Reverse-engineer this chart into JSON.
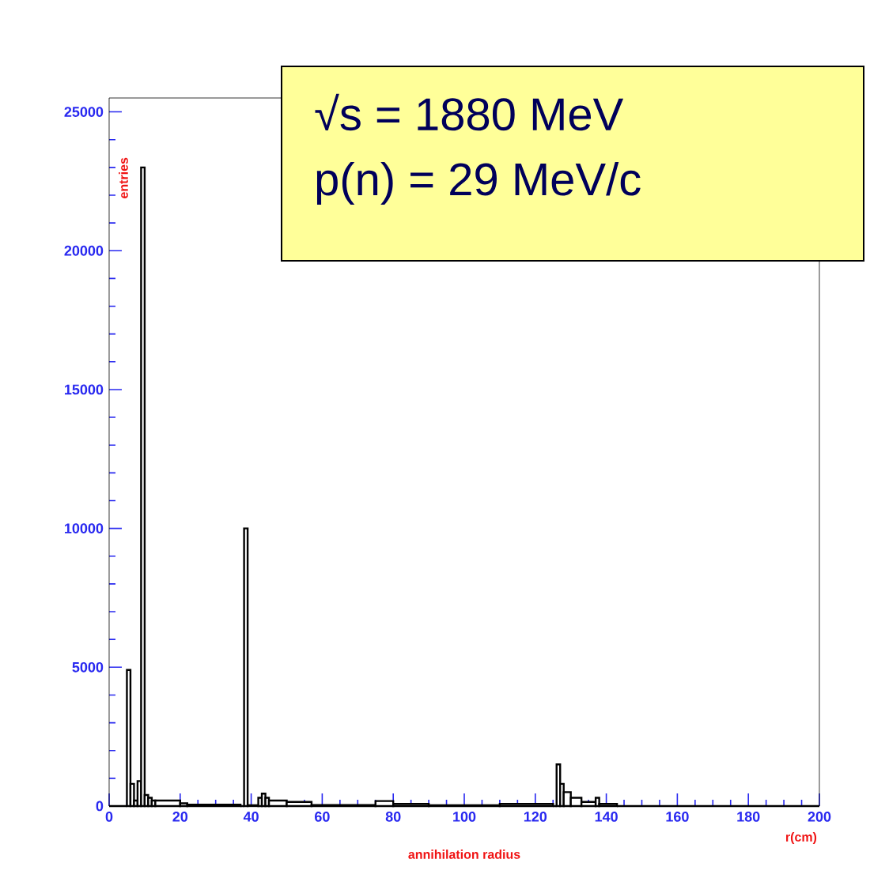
{
  "chart_data": {
    "type": "histogram",
    "xlabel": "annihilation radius",
    "ylabel": "entries",
    "annotations": [
      "√s = 1880 MeV",
      "p(n) = 29 MeV/c",
      "r(cm)"
    ],
    "bins": [
      0,
      5,
      6,
      7,
      8,
      9,
      10,
      11,
      12,
      13,
      20,
      22,
      37,
      38,
      39,
      42,
      43,
      44,
      45,
      50,
      57,
      75,
      80,
      90,
      110,
      125,
      126,
      127,
      128,
      130,
      133,
      137,
      138,
      143,
      200
    ],
    "values": [
      0,
      4900,
      800,
      200,
      900,
      23000,
      400,
      300,
      200,
      200,
      100,
      50,
      0,
      10000,
      30,
      300,
      450,
      300,
      200,
      150,
      40,
      180,
      80,
      30,
      80,
      0,
      1500,
      800,
      500,
      300,
      150,
      300,
      80,
      0
    ],
    "color": "#000000",
    "xlim": [
      0,
      200
    ],
    "ylim": [
      0,
      25500
    ],
    "xticks": [
      0,
      20,
      40,
      60,
      80,
      100,
      120,
      140,
      160,
      180,
      200
    ],
    "yticks": [
      0,
      5000,
      10000,
      15000,
      20000,
      25000
    ]
  }
}
